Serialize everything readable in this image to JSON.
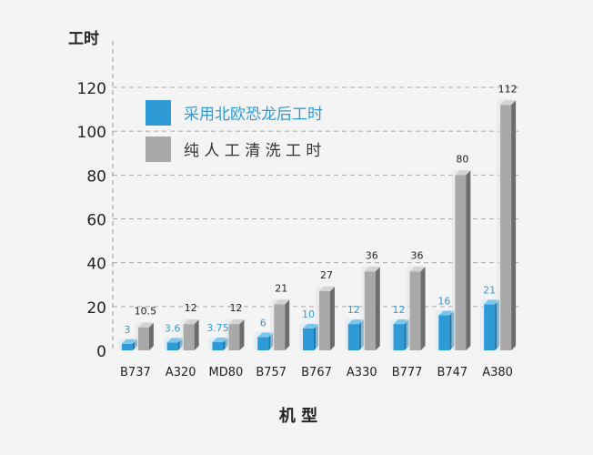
{
  "chart_data": {
    "type": "bar",
    "ylabel": "工时",
    "xlabel": "机 型",
    "ylim": [
      0,
      120
    ],
    "yticks": [
      0,
      20,
      40,
      60,
      80,
      100,
      120
    ],
    "grid": true,
    "legend_position": "top-left",
    "categories": [
      "B737",
      "A320",
      "MD80",
      "B757",
      "B767",
      "A330",
      "B777",
      "B747",
      "A380"
    ],
    "series": [
      {
        "name": "采用北欧恐龙后工时",
        "color": "#2e9bd6",
        "values": [
          3,
          3.6,
          3.75,
          6,
          10,
          12,
          12,
          16,
          21
        ],
        "labels": [
          "3",
          "3.6",
          "3.75",
          "6",
          "10",
          "12",
          "12",
          "16",
          "21"
        ]
      },
      {
        "name": "纯 人 工 清 洗 工 时",
        "color": "#a9a9a9",
        "values": [
          10.5,
          12,
          12,
          21,
          27,
          36,
          36,
          80,
          112
        ],
        "labels": [
          "10.5",
          "12",
          "12",
          "21",
          "27",
          "36",
          "36",
          "80",
          "112"
        ]
      }
    ]
  }
}
